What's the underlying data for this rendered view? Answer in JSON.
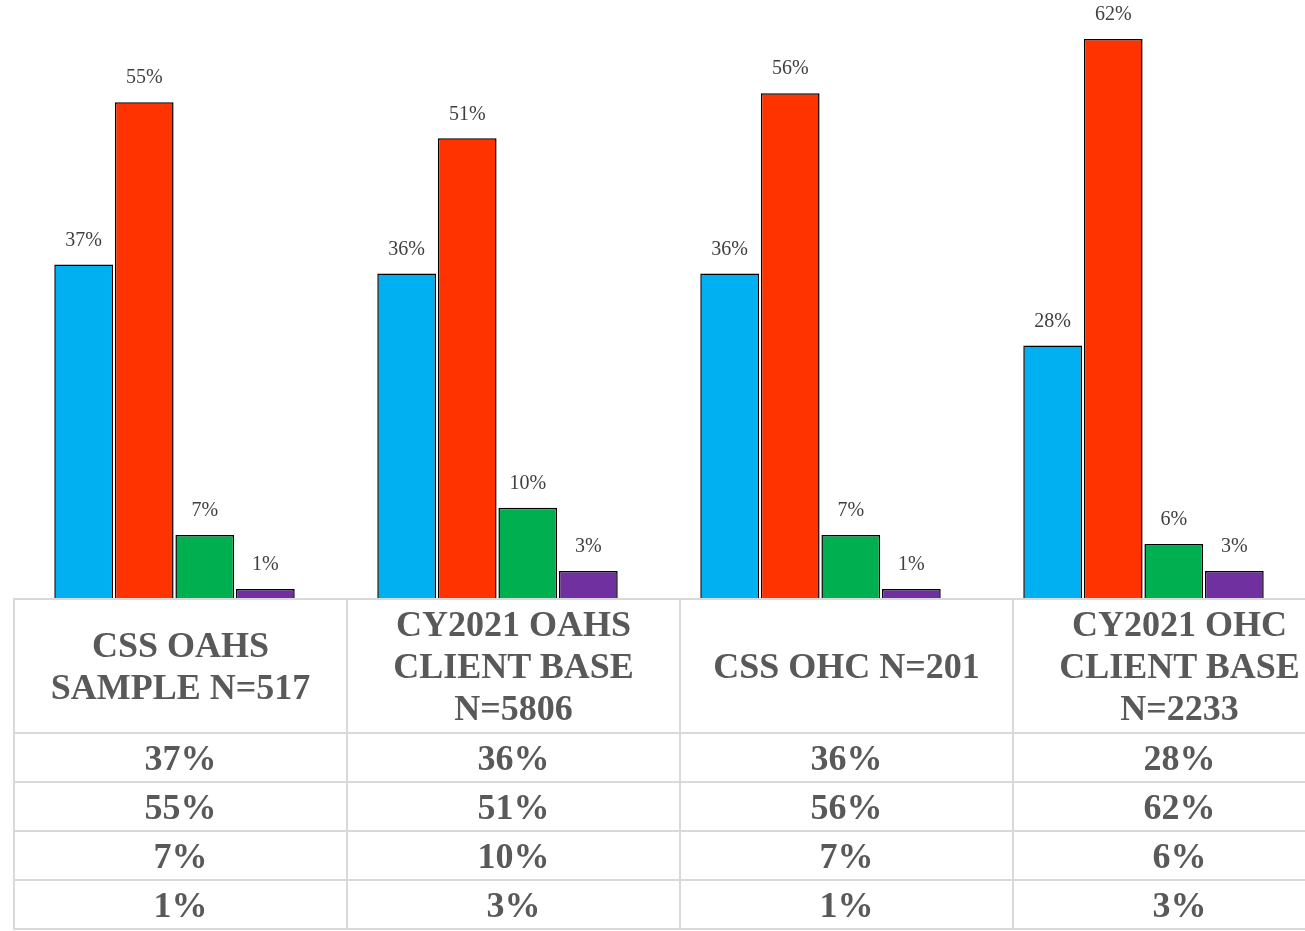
{
  "chart_data": {
    "type": "bar",
    "categories": [
      "CSS OAHS SAMPLE N=517",
      "CY2021 OAHS CLIENT BASE N=5806",
      "CSS OHC N=201",
      "CY2021 OHC CLIENT BASE N=2233"
    ],
    "series": [
      {
        "color": "#00b0f0",
        "values": [
          37,
          36,
          36,
          28
        ],
        "value_labels": [
          "37%",
          "36%",
          "36%",
          "28%"
        ]
      },
      {
        "color": "#ff3300",
        "values": [
          55,
          51,
          56,
          62
        ],
        "value_labels": [
          "55%",
          "51%",
          "56%",
          "62%"
        ]
      },
      {
        "color": "#00b050",
        "values": [
          7,
          10,
          7,
          6
        ],
        "value_labels": [
          "7%",
          "10%",
          "7%",
          "6%"
        ]
      },
      {
        "color": "#7030a0",
        "values": [
          1,
          3,
          1,
          3
        ],
        "value_labels": [
          "1%",
          "3%",
          "1%",
          "3%"
        ]
      }
    ],
    "grid": false,
    "legend": false
  }
}
